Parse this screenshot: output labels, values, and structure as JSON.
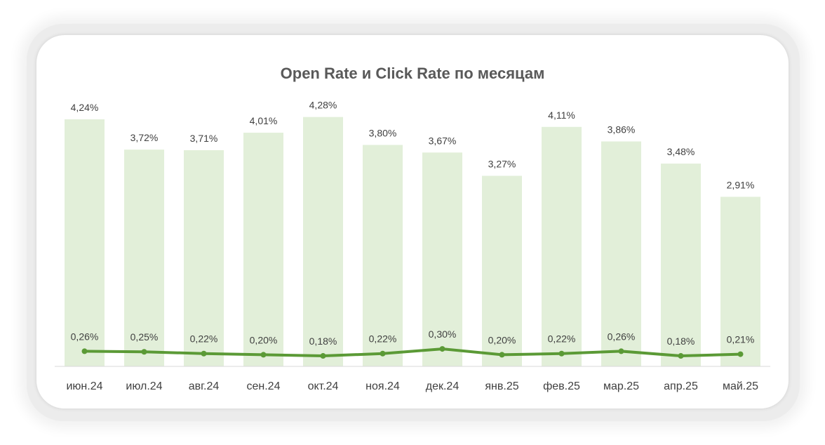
{
  "chart_data": {
    "type": "bar",
    "title": "Open Rate и Click Rate по месяцам",
    "xlabel": "",
    "ylabel": "",
    "categories": [
      "июн.24",
      "июл.24",
      "авг.24",
      "сен.24",
      "окт.24",
      "ноя.24",
      "дек.24",
      "янв.25",
      "фев.25",
      "мар.25",
      "апр.25",
      "май.25"
    ],
    "series": [
      {
        "kind": "bar",
        "color": "#e2efd9",
        "values": [
          4.24,
          3.72,
          3.71,
          4.01,
          4.28,
          3.8,
          3.67,
          3.27,
          4.11,
          3.86,
          3.48,
          2.91
        ],
        "labels": [
          "4,24%",
          "3,72%",
          "3,71%",
          "4,01%",
          "4,28%",
          "3,80%",
          "3,67%",
          "3,27%",
          "4,11%",
          "3,86%",
          "3,48%",
          "2,91%"
        ]
      },
      {
        "kind": "line",
        "color": "#5b9a36",
        "values": [
          0.26,
          0.25,
          0.22,
          0.2,
          0.18,
          0.22,
          0.3,
          0.2,
          0.22,
          0.26,
          0.18,
          0.21
        ],
        "labels": [
          "0,26%",
          "0,25%",
          "0,22%",
          "0,20%",
          "0,18%",
          "0,22%",
          "0,30%",
          "0,20%",
          "0,22%",
          "0,26%",
          "0,18%",
          "0,21%"
        ]
      }
    ],
    "ylim": [
      0,
      4.3
    ],
    "grid": false,
    "legend": "none"
  }
}
